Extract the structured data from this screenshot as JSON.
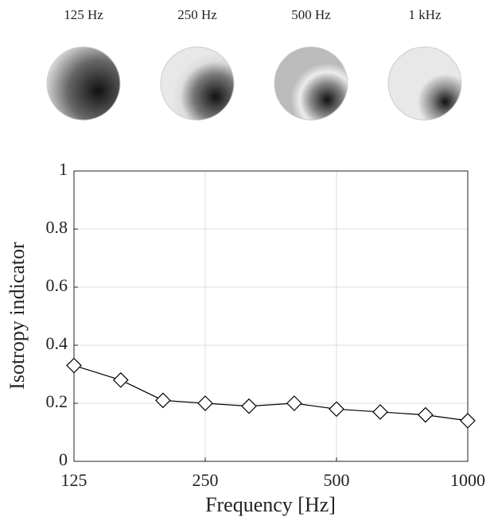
{
  "chart_data": {
    "type": "line",
    "annotations": [
      "125 Hz",
      "250 Hz",
      "500 Hz",
      "1 kHz"
    ],
    "x": [
      125,
      160,
      200,
      250,
      315,
      400,
      500,
      630,
      800,
      1000
    ],
    "values": [
      0.33,
      0.28,
      0.21,
      0.2,
      0.19,
      0.2,
      0.18,
      0.17,
      0.16,
      0.14
    ],
    "color": "#000000",
    "xlabel": "Frequency [Hz]",
    "ylabel": "Isotropy indicator",
    "xlim": [
      125,
      1000
    ],
    "xticks": [
      125,
      250,
      500,
      1000
    ],
    "xscale": "log",
    "ylim": [
      0,
      1
    ],
    "yticks": [
      0,
      0.2,
      0.4,
      0.6,
      0.8,
      1
    ],
    "grid": true
  }
}
